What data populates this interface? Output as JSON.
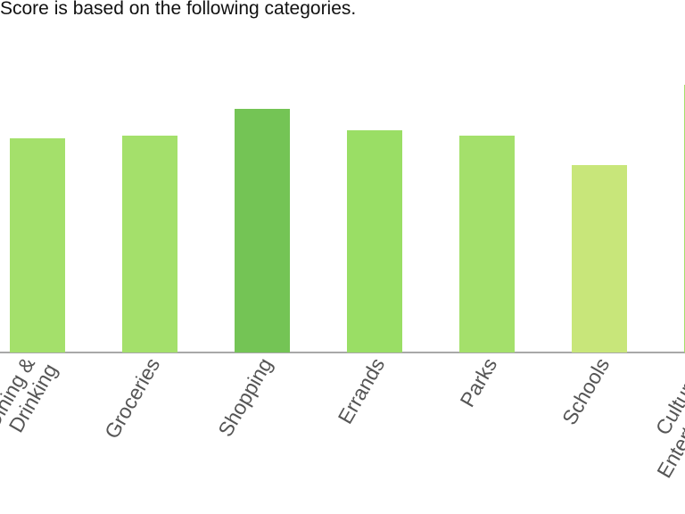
{
  "header": {
    "title": "Score is based on the following categories."
  },
  "chart_data": {
    "type": "bar",
    "categories": [
      "Dining & Drinking",
      "Groceries",
      "Shopping",
      "Errands",
      "Parks",
      "Schools",
      "Culture & Entertainment"
    ],
    "values": [
      80,
      81,
      91,
      83,
      81,
      70,
      100
    ],
    "colors": [
      "#a4e06b",
      "#a4e06b",
      "#74c455",
      "#9ade65",
      "#a4e06b",
      "#c8e67a",
      "#a4e06b"
    ],
    "ylim": [
      0,
      100
    ]
  }
}
